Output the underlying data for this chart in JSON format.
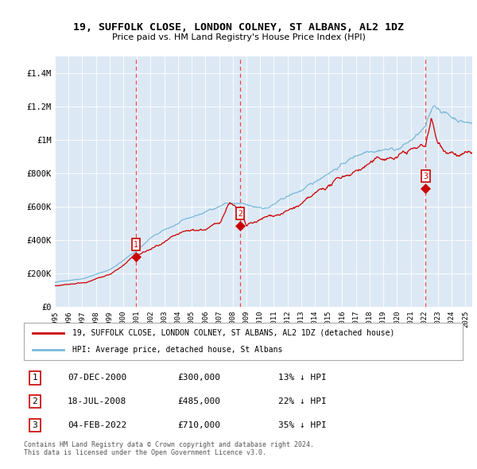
{
  "title": "19, SUFFOLK CLOSE, LONDON COLNEY, ST ALBANS, AL2 1DZ",
  "subtitle": "Price paid vs. HM Land Registry's House Price Index (HPI)",
  "background_color": "#ffffff",
  "plot_bg_color": "#dce9f5",
  "sale_decimal": [
    2000.92,
    2008.54,
    2022.09
  ],
  "sale_prices": [
    300000,
    485000,
    710000
  ],
  "sale_labels": [
    "1",
    "2",
    "3"
  ],
  "table_rows": [
    [
      "1",
      "07-DEC-2000",
      "£300,000",
      "13% ↓ HPI"
    ],
    [
      "2",
      "18-JUL-2008",
      "£485,000",
      "22% ↓ HPI"
    ],
    [
      "3",
      "04-FEB-2022",
      "£710,000",
      "35% ↓ HPI"
    ]
  ],
  "legend_line1": "19, SUFFOLK CLOSE, LONDON COLNEY, ST ALBANS, AL2 1DZ (detached house)",
  "legend_line2": "HPI: Average price, detached house, St Albans",
  "footer": "Contains HM Land Registry data © Crown copyright and database right 2024.\nThis data is licensed under the Open Government Licence v3.0.",
  "hpi_color": "#7ab8d9",
  "price_color": "#cc0000",
  "dashed_line_color": "#ee3333",
  "ylim": [
    0,
    1500000
  ],
  "yticks": [
    0,
    200000,
    400000,
    600000,
    800000,
    1000000,
    1200000,
    1400000
  ],
  "ytick_labels": [
    "£0",
    "£200K",
    "£400K",
    "£600K",
    "£800K",
    "£1M",
    "£1.2M",
    "£1.4M"
  ],
  "xlim": [
    1995,
    2025.5
  ],
  "xticks": [
    1995,
    1996,
    1997,
    1998,
    1999,
    2000,
    2001,
    2002,
    2003,
    2004,
    2005,
    2006,
    2007,
    2008,
    2009,
    2010,
    2011,
    2012,
    2013,
    2014,
    2015,
    2016,
    2017,
    2018,
    2019,
    2020,
    2021,
    2022,
    2023,
    2024,
    2025
  ]
}
